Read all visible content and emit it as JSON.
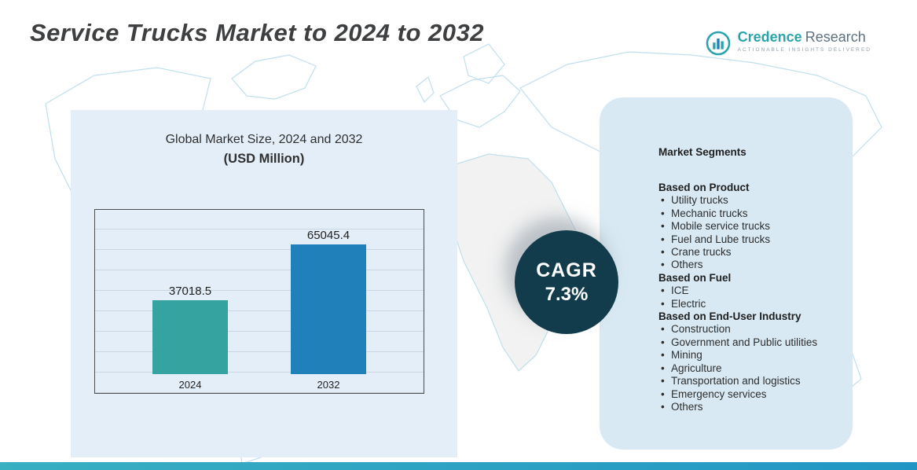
{
  "page": {
    "title": "Service Trucks Market to 2024 to 2032"
  },
  "logo": {
    "brand_primary": "Credence",
    "brand_secondary": "Research",
    "tagline": "Actionable Insights Delivered"
  },
  "chart_data": {
    "type": "bar",
    "title": "Global Market Size, 2024 and 2032",
    "subtitle": "(USD Million)",
    "categories": [
      "2024",
      "2032"
    ],
    "values": [
      37018.5,
      65045.4
    ],
    "xlabel": "",
    "ylabel": "USD Million",
    "ylim": [
      0,
      80000
    ],
    "grid": "horizontal",
    "legend": "none",
    "colors": [
      "#35a3a0",
      "#1f80ba"
    ]
  },
  "cagr": {
    "label": "CAGR",
    "value": "7.3%"
  },
  "segments": {
    "title": "Market Segments",
    "groups": [
      {
        "heading": "Based on Product",
        "items": [
          "Utility trucks",
          "Mechanic trucks",
          "Mobile service trucks",
          "Fuel and Lube trucks",
          "Crane trucks",
          "Others"
        ]
      },
      {
        "heading": "Based on Fuel",
        "items": [
          "ICE",
          "Electric"
        ]
      },
      {
        "heading": "Based on End-User Industry",
        "items": [
          "Construction",
          "Government and Public utilities",
          "Mining",
          "Agriculture",
          "Transportation and logistics",
          "Emergency services",
          "Others"
        ]
      }
    ]
  },
  "colors": {
    "bar_2024": "#35a3a0",
    "bar_2032": "#1f80ba",
    "cagr_circle": "#123c4c",
    "left_panel_bg": "#e3eef8",
    "right_panel_bg": "#d8e9f3",
    "bottom_bar": "#2aa3c0",
    "brand_teal": "#2aa3ad"
  }
}
